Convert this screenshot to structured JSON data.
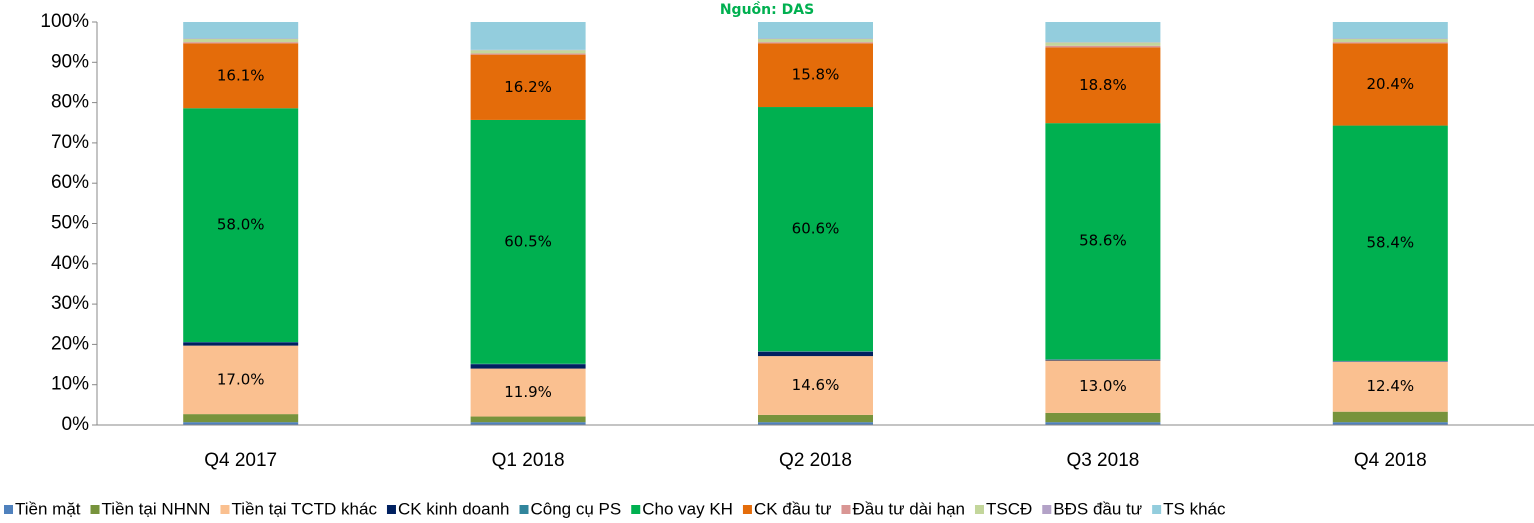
{
  "chart_data": {
    "type": "stacked_bar_percent",
    "source": "Nguồn: DAS",
    "categories": [
      "Q4 2017",
      "Q1 2018",
      "Q2 2018",
      "Q3 2018",
      "Q4 2018"
    ],
    "ylim": [
      0,
      100
    ],
    "yticks": [
      {
        "value": 0,
        "label": "0%"
      },
      {
        "value": 10,
        "label": "10%"
      },
      {
        "value": 20,
        "label": "20%"
      },
      {
        "value": 30,
        "label": "30%"
      },
      {
        "value": 40,
        "label": "40%"
      },
      {
        "value": 50,
        "label": "50%"
      },
      {
        "value": 60,
        "label": "60%"
      },
      {
        "value": 70,
        "label": "70%"
      },
      {
        "value": 80,
        "label": "80%"
      },
      {
        "value": 90,
        "label": "90%"
      },
      {
        "value": 100,
        "label": "100%"
      }
    ],
    "legend": "bottom",
    "series": [
      {
        "name": "Tiền mặt",
        "color": "#4f81bd",
        "values": [
          0.7,
          0.7,
          0.7,
          0.7,
          0.7
        ]
      },
      {
        "name": "Tiền tại NHNN",
        "color": "#77933c",
        "values": [
          2.0,
          1.4,
          1.8,
          2.3,
          2.6
        ]
      },
      {
        "name": "Tiền tại TCTD khác",
        "color": "#fac090",
        "values": [
          17.0,
          11.9,
          14.6,
          13.0,
          12.4
        ],
        "value_labels": [
          "17.0%",
          "11.9%",
          "14.6%",
          "13.0%",
          "12.4%"
        ]
      },
      {
        "name": "CK kinh doanh",
        "color": "#002060",
        "values": [
          0.8,
          1.1,
          1.1,
          0.2,
          0.1
        ]
      },
      {
        "name": "Công cụ PS",
        "color": "#31859c",
        "values": [
          0.1,
          0.1,
          0.1,
          0.1,
          0.1
        ]
      },
      {
        "name": "Cho vay KH",
        "color": "#00b050",
        "values": [
          58.0,
          60.5,
          60.6,
          58.6,
          58.4
        ],
        "value_labels": [
          "58.0%",
          "60.5%",
          "60.6%",
          "58.6%",
          "58.4%"
        ]
      },
      {
        "name": "CK đầu tư",
        "color": "#e46c0a",
        "values": [
          16.1,
          16.2,
          15.8,
          18.8,
          20.4
        ],
        "value_labels": [
          "16.1%",
          "16.2%",
          "15.8%",
          "18.8%",
          "20.4%"
        ]
      },
      {
        "name": "Đầu tư dài hạn",
        "color": "#d99694",
        "values": [
          0.3,
          0.3,
          0.3,
          0.4,
          0.3
        ]
      },
      {
        "name": "TSCĐ",
        "color": "#c3d69b",
        "values": [
          0.8,
          0.8,
          0.8,
          0.8,
          0.8
        ]
      },
      {
        "name": "BĐS đầu tư",
        "color": "#b3a2c7",
        "values": [
          0.1,
          0.1,
          0.1,
          0.1,
          0.1
        ]
      },
      {
        "name": "TS khác",
        "color": "#93cddd",
        "values": [
          4.1,
          6.9,
          4.1,
          5.0,
          4.1
        ]
      }
    ]
  }
}
